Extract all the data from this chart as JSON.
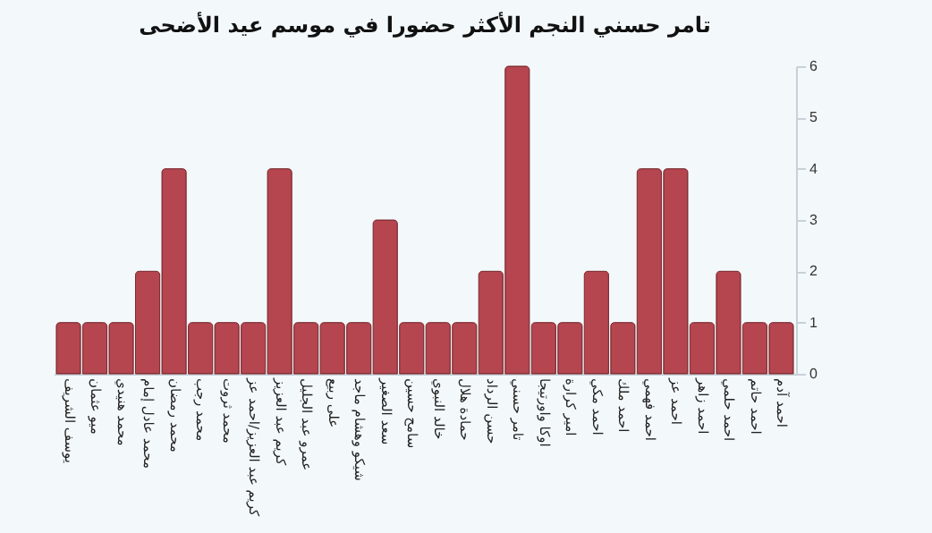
{
  "chart_data": {
    "type": "bar",
    "title": "تامر حسني النجم الأكثر حضورا في موسم عيد الأضحى",
    "categories": [
      "يوسف الشريف",
      "ميو عثمان",
      "محمد هنيدي",
      "محمد عادل إمام",
      "محمد رمضان",
      "محمد رجب",
      "محمد ثروت",
      "كريم عبد العزيز/احمد عز",
      "كريم عبد العزيز",
      "عمرو عبد الجليل",
      "على ربيع",
      "شيكو وهشام ماجد",
      "سعد الصغير",
      "سامح حسين",
      "خالد النبوي",
      "حمادة هلال",
      "حسن الرداد",
      "تامر حسني",
      "اوكا واورتيجا",
      "امير كرارة",
      "احمد مكي",
      "احمد ملك",
      "احمد فهمي",
      "احمد عز",
      "احمد زاهر",
      "احمد حلمي",
      "احمد حاتم",
      "احمد آدم"
    ],
    "values": [
      1,
      1,
      1,
      2,
      4,
      1,
      1,
      1,
      4,
      1,
      1,
      1,
      3,
      1,
      1,
      1,
      2,
      6,
      1,
      1,
      2,
      1,
      4,
      4,
      1,
      2,
      1,
      1
    ],
    "color": "#b5454f",
    "ylim": [
      0,
      6
    ],
    "yticks": [
      0,
      1,
      2,
      3,
      4,
      5,
      6
    ],
    "grid": false
  }
}
